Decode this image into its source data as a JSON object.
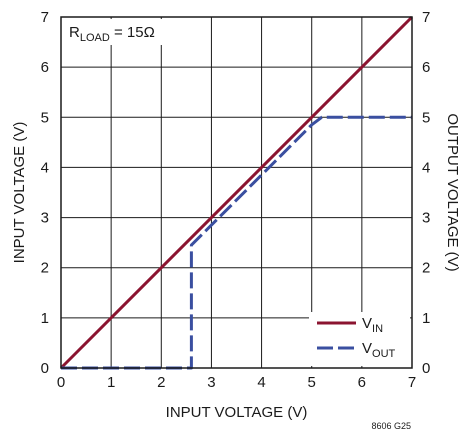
{
  "chart_data": {
    "type": "line",
    "x": {
      "label": "INPUT VOLTAGE (V)",
      "range": [
        0,
        7
      ],
      "ticks": [
        "0",
        "1",
        "2",
        "3",
        "4",
        "5",
        "6",
        "7"
      ]
    },
    "y_left": {
      "label": "INPUT VOLTAGE (V)",
      "range": [
        0,
        7
      ],
      "ticks": [
        "0",
        "1",
        "2",
        "3",
        "4",
        "5",
        "6",
        "7"
      ]
    },
    "y_right": {
      "label": "OUTPUT VOLTAGE (V)",
      "range": [
        0,
        7
      ],
      "ticks": [
        "0",
        "1",
        "2",
        "3",
        "4",
        "5",
        "6",
        "7"
      ]
    },
    "annotation": {
      "prefix": "R",
      "subscript": "LOAD",
      "suffix": " = 15Ω"
    },
    "figure_id": "8606 G25",
    "grid": true,
    "legend_position": "bottom-right",
    "series": [
      {
        "name_main": "V",
        "name_sub": "IN",
        "color": "#8b1430",
        "dash": "solid",
        "points": [
          [
            0,
            0
          ],
          [
            7,
            7
          ]
        ]
      },
      {
        "name_main": "V",
        "name_sub": "OUT",
        "color": "#3a4fa0",
        "dash": "dashed",
        "points": [
          [
            0,
            0
          ],
          [
            2.5,
            0
          ],
          [
            2.6,
            0
          ],
          [
            2.6,
            2.45
          ],
          [
            3.0,
            2.85
          ],
          [
            4.0,
            3.85
          ],
          [
            5.0,
            4.85
          ],
          [
            5.2,
            5.0
          ],
          [
            7.0,
            5.0
          ]
        ]
      }
    ]
  }
}
